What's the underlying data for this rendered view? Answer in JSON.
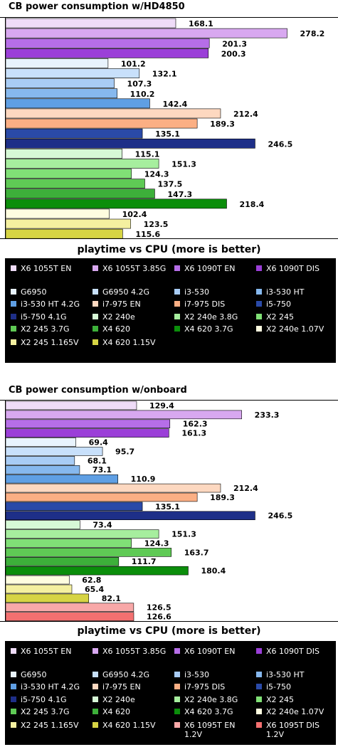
{
  "chart_data": [
    {
      "type": "bar",
      "orientation": "horizontal",
      "title": "CB power consumption w/HD4850",
      "xlabel": "playtime vs CPU (more is better)",
      "xlim": [
        0,
        300
      ],
      "grid": false,
      "legend_placement": "bottom",
      "series": [
        {
          "name": "X6 1055T EN",
          "value": 168.1,
          "color": "#efdcf8"
        },
        {
          "name": "X6 1055T 3.85G",
          "value": 278.2,
          "color": "#d8a8f0"
        },
        {
          "name": "X6 1090T EN",
          "value": 201.3,
          "color": "#b66ee8"
        },
        {
          "name": "X6 1090T DIS",
          "value": 200.3,
          "color": "#9b3fd8"
        },
        {
          "name": "G6950",
          "value": 101.2,
          "color": "#e8f3fd"
        },
        {
          "name": "G6950 4.2G",
          "value": 132.1,
          "color": "#c8e0fb"
        },
        {
          "name": "i3-530",
          "value": 107.3,
          "color": "#a8ccf5"
        },
        {
          "name": "i3-530 HT",
          "value": 110.2,
          "color": "#86b8ee"
        },
        {
          "name": "i3-530 HT 4.2G",
          "value": 142.4,
          "color": "#5f9fe4"
        },
        {
          "name": "i7-975 EN",
          "value": 212.4,
          "color": "#fdd8c0"
        },
        {
          "name": "i7-975 DIS",
          "value": 189.3,
          "color": "#fbaf84"
        },
        {
          "name": "i5-750",
          "value": 135.1,
          "color": "#2a4aa8"
        },
        {
          "name": "i5-750 4.1G",
          "value": 246.5,
          "color": "#1e2f88"
        },
        {
          "name": "X2 240e",
          "value": 115.1,
          "color": "#d6f8d6"
        },
        {
          "name": "X2 240e 3.8G",
          "value": 151.3,
          "color": "#a6ee9e"
        },
        {
          "name": "X2 245",
          "value": 124.3,
          "color": "#80e076"
        },
        {
          "name": "X2 245 3.7G",
          "value": 137.5,
          "color": "#5fca55"
        },
        {
          "name": "X4 620",
          "value": 147.3,
          "color": "#3db03a"
        },
        {
          "name": "X4 620 3.7G",
          "value": 218.4,
          "color": "#0b8e0b"
        },
        {
          "name": "X2 240e 1.07V",
          "value": 102.4,
          "color": "#fefde0"
        },
        {
          "name": "X2 245 1.165V",
          "value": 123.5,
          "color": "#f4f0a0"
        },
        {
          "name": "X4 620 1.15V",
          "value": 115.6,
          "color": "#d6d444"
        }
      ]
    },
    {
      "type": "bar",
      "orientation": "horizontal",
      "title": "CB power consumption w/onboard",
      "xlabel": "playtime vs CPU (more is better)",
      "xlim": [
        0,
        300
      ],
      "grid": false,
      "legend_placement": "bottom",
      "series": [
        {
          "name": "X6 1055T EN",
          "value": 129.4,
          "color": "#efdcf8"
        },
        {
          "name": "X6 1055T 3.85G",
          "value": 233.3,
          "color": "#d8a8f0"
        },
        {
          "name": "X6 1090T EN",
          "value": 162.3,
          "color": "#b66ee8"
        },
        {
          "name": "X6 1090T DIS",
          "value": 161.3,
          "color": "#9b3fd8"
        },
        {
          "name": "G6950",
          "value": 69.4,
          "color": "#e8f3fd"
        },
        {
          "name": "G6950 4.2G",
          "value": 95.7,
          "color": "#c8e0fb"
        },
        {
          "name": "i3-530",
          "value": 68.1,
          "color": "#a8ccf5"
        },
        {
          "name": "i3-530 HT",
          "value": 73.1,
          "color": "#86b8ee"
        },
        {
          "name": "i3-530 HT 4.2G",
          "value": 110.9,
          "color": "#5f9fe4"
        },
        {
          "name": "i7-975 EN",
          "value": 212.4,
          "color": "#fdd8c0"
        },
        {
          "name": "i7-975 DIS",
          "value": 189.3,
          "color": "#fbaf84"
        },
        {
          "name": "i5-750",
          "value": 135.1,
          "color": "#2a4aa8"
        },
        {
          "name": "i5-750 4.1G",
          "value": 246.5,
          "color": "#1e2f88"
        },
        {
          "name": "X2 240e",
          "value": 73.4,
          "color": "#d6f8d6"
        },
        {
          "name": "X2 240e 3.8G",
          "value": 151.3,
          "color": "#a6ee9e"
        },
        {
          "name": "X2 245",
          "value": 124.3,
          "color": "#80e076"
        },
        {
          "name": "X2 245 3.7G",
          "value": 163.7,
          "color": "#5fca55"
        },
        {
          "name": "X4 620",
          "value": 111.7,
          "color": "#3db03a"
        },
        {
          "name": "X4 620 3.7G",
          "value": 180.4,
          "color": "#0b8e0b"
        },
        {
          "name": "X2 240e 1.07V",
          "value": 62.8,
          "color": "#fefde0"
        },
        {
          "name": "X2 245 1.165V",
          "value": 65.4,
          "color": "#f4f0a0"
        },
        {
          "name": "X4 620 1.15V",
          "value": 82.1,
          "color": "#d6d444"
        },
        {
          "name": "X6 1095T EN 1.2V",
          "value": 126.5,
          "color": "#f8a8a8"
        },
        {
          "name": "X6 1095T DIS 1.2V",
          "value": 126.6,
          "color": "#f37070"
        }
      ]
    }
  ]
}
